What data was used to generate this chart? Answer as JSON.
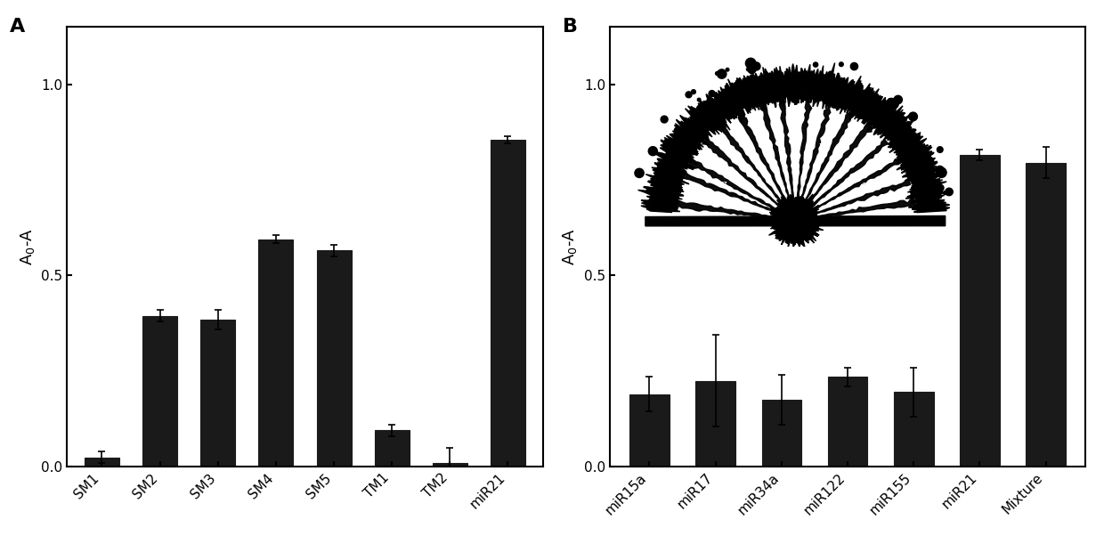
{
  "panel_a": {
    "categories": [
      "SM1",
      "SM2",
      "SM3",
      "SM4",
      "SM5",
      "TM1",
      "TM2",
      "miR21"
    ],
    "values": [
      0.025,
      0.395,
      0.385,
      0.595,
      0.565,
      0.095,
      0.01,
      0.855
    ],
    "errors": [
      0.015,
      0.015,
      0.025,
      0.01,
      0.015,
      0.015,
      0.04,
      0.01
    ],
    "ylabel": "A$_0$-A",
    "label": "A",
    "ylim": [
      0,
      1.15
    ],
    "yticks": [
      0.0,
      0.5,
      1.0
    ]
  },
  "panel_b": {
    "categories": [
      "miR15a",
      "miR17",
      "miR34a",
      "miR122",
      "miR155",
      "miR21",
      "Mixture"
    ],
    "values": [
      0.19,
      0.225,
      0.175,
      0.235,
      0.195,
      0.815,
      0.795
    ],
    "errors": [
      0.045,
      0.12,
      0.065,
      0.025,
      0.065,
      0.015,
      0.04
    ],
    "ylabel": "A$_0$-A",
    "label": "B",
    "ylim": [
      0,
      1.15
    ],
    "yticks": [
      0.0,
      0.5,
      1.0
    ]
  },
  "bar_color": "#1a1a1a",
  "bar_edge_color": "#1a1a1a",
  "bar_width": 0.6,
  "figure_bg": "#ffffff",
  "axes_bg": "#ffffff",
  "tick_label_size": 11,
  "ylabel_size": 13,
  "panel_label_size": 16
}
